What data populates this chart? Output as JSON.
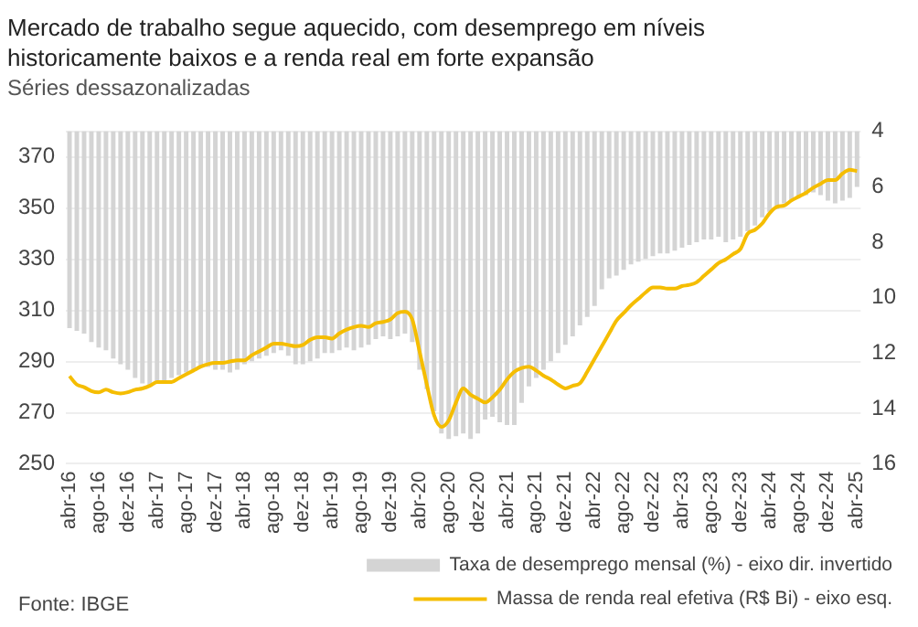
{
  "chart_data": {
    "type": "bar",
    "title": "Mercado de trabalho segue aquecido, com desemprego em níveis historicamente baixos e a renda real em forte expansão",
    "subtitle": "Séries dessazonalizadas",
    "categories": [
      "abr-16",
      null,
      null,
      null,
      "ago-16",
      null,
      null,
      null,
      "dez-16",
      null,
      null,
      null,
      "abr-17",
      null,
      null,
      null,
      "ago-17",
      null,
      null,
      null,
      "dez-17",
      null,
      null,
      null,
      "abr-18",
      null,
      null,
      null,
      "ago-18",
      null,
      null,
      null,
      "dez-18",
      null,
      null,
      null,
      "abr-19",
      null,
      null,
      null,
      "ago-19",
      null,
      null,
      null,
      "dez-19",
      null,
      null,
      null,
      "abr-20",
      null,
      null,
      null,
      "ago-20",
      null,
      null,
      null,
      "dez-20",
      null,
      null,
      null,
      "abr-21",
      null,
      null,
      null,
      "ago-21",
      null,
      null,
      null,
      "dez-21",
      null,
      null,
      null,
      "abr-22",
      null,
      null,
      null,
      "ago-22",
      null,
      null,
      null,
      "dez-22",
      null,
      null,
      null,
      "abr-23",
      null,
      null,
      null,
      "ago-23",
      null,
      null,
      null,
      "dez-23",
      null,
      null,
      null,
      "abr-24",
      null,
      null,
      null,
      "ago-24",
      null,
      null,
      null,
      "dez-24",
      null,
      null,
      null,
      "abr-25"
    ],
    "series": [
      {
        "name": "Taxa de desemprego mensal (%) - eixo dir. invertido",
        "axis": "y2",
        "color": "#d4d4d4",
        "values": [
          11.1,
          11.2,
          11.3,
          11.6,
          11.8,
          11.9,
          12.2,
          12.4,
          12.6,
          12.9,
          13.1,
          13.2,
          13.1,
          13.0,
          12.9,
          12.8,
          12.7,
          12.6,
          12.5,
          12.5,
          12.6,
          12.6,
          12.7,
          12.6,
          12.4,
          12.3,
          12.2,
          12.1,
          12.0,
          11.9,
          12.1,
          12.4,
          12.4,
          12.3,
          12.2,
          12.0,
          12.0,
          11.9,
          11.8,
          11.9,
          11.8,
          11.7,
          11.5,
          11.4,
          11.5,
          11.4,
          11.3,
          11.6,
          12.6,
          13.3,
          14.1,
          14.9,
          15.1,
          15.0,
          14.9,
          15.1,
          14.9,
          14.4,
          14.3,
          14.5,
          14.6,
          14.6,
          13.8,
          13.2,
          12.9,
          12.6,
          12.3,
          12.0,
          11.7,
          11.4,
          11.0,
          10.7,
          10.3,
          9.7,
          9.3,
          9.2,
          9.0,
          8.8,
          8.7,
          8.6,
          8.5,
          8.4,
          8.4,
          8.3,
          8.2,
          8.1,
          8.0,
          7.9,
          7.9,
          7.8,
          8.0,
          7.9,
          7.8,
          7.6,
          7.4,
          7.1,
          6.9,
          6.8,
          6.6,
          6.5,
          6.4,
          6.3,
          6.2,
          6.3,
          6.5,
          6.6,
          6.5,
          6.4,
          6.0
        ]
      },
      {
        "name": "Massa de renda real efetiva (R$ Bi) - eixo esq.",
        "type": "line",
        "color": "#f5bd00",
        "values": [
          284.3,
          281,
          280,
          278.5,
          278,
          279,
          278,
          277.5,
          278,
          279,
          279.5,
          280.5,
          282,
          282,
          282,
          283.5,
          285,
          286.5,
          288,
          289,
          289.5,
          289.5,
          290,
          290.5,
          290.5,
          292.5,
          294,
          295.5,
          297,
          297,
          296.5,
          296,
          296.5,
          298.5,
          299.5,
          299.5,
          299,
          301,
          302.5,
          303.5,
          304,
          303.5,
          305,
          305.5,
          306.5,
          309,
          309.5,
          306.5,
          294,
          281,
          269,
          264.5,
          267,
          274,
          279.5,
          277,
          275.5,
          274,
          276,
          279,
          283,
          286,
          287.5,
          288,
          286.5,
          284.5,
          283,
          281,
          279.5,
          280.5,
          281.5,
          286,
          291,
          296,
          301,
          306,
          309,
          312,
          314.5,
          317,
          319,
          319,
          318.5,
          318.5,
          319.5,
          320,
          321,
          323.5,
          326,
          328.5,
          330,
          332,
          334,
          340,
          341.5,
          344,
          348,
          350.5,
          351,
          353,
          354.5,
          356,
          358,
          359.5,
          361,
          361,
          363.5,
          365,
          364.5
        ]
      }
    ],
    "ylim": [
      250,
      380
    ],
    "yticks": [
      250,
      270,
      290,
      310,
      330,
      350,
      370,
      {
        "value": 380,
        "label": null
      }
    ],
    "y2lim": [
      16,
      4
    ],
    "y2ticks": [
      4,
      6,
      8,
      10,
      12,
      14,
      16
    ],
    "grid": "y",
    "legend": "bottom",
    "marker": "none",
    "line_style": "solid",
    "annotations": [
      "Fonte: IBGE"
    ]
  }
}
